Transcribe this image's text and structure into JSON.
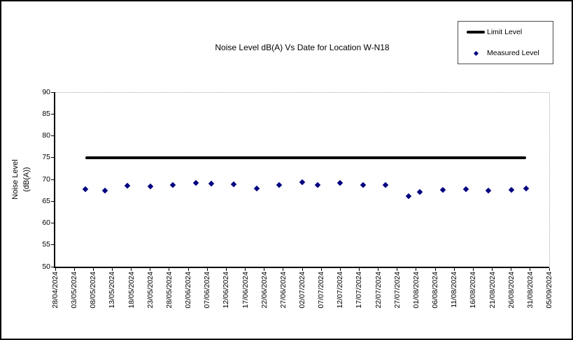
{
  "chart_data": {
    "type": "scatter",
    "title": "Noise Level dB(A) Vs Date for Location W-N18",
    "xlabel": "",
    "ylabel": "Noise Level (dB(A))",
    "ylabel_lines": [
      "Noise Level",
      "(dB(A))"
    ],
    "ylim": [
      50,
      90
    ],
    "y_tick_step": 5,
    "y_tick_labels": [
      "90",
      "85",
      "80",
      "75",
      "70",
      "65",
      "60",
      "55",
      "50"
    ],
    "x_tick_interval_days": 5,
    "x_tick_labels": [
      "28/04/2024",
      "03/05/2024",
      "08/05/2024",
      "13/05/2024",
      "18/05/2024",
      "23/05/2024",
      "28/05/2024",
      "02/06/2024",
      "07/06/2024",
      "12/06/2024",
      "17/06/2024",
      "22/06/2024",
      "27/06/2024",
      "02/07/2024",
      "07/07/2024",
      "12/07/2024",
      "17/07/2024",
      "22/07/2024",
      "27/07/2024",
      "01/08/2024",
      "06/08/2024",
      "11/08/2024",
      "16/08/2024",
      "21/08/2024",
      "26/08/2024",
      "31/08/2024",
      "05/09/2024"
    ],
    "grid": "off",
    "legend_position": "top-right",
    "colors": {
      "limit_line": "#000000",
      "measured_marker": "#000080",
      "plot_border_dotted": "#a6a6a6"
    },
    "series": [
      {
        "name": "Limit Level",
        "type": "line",
        "color": "#000000",
        "points": [
          {
            "date": "06/05/2024",
            "value": 75
          },
          {
            "date": "30/08/2024",
            "value": 75
          }
        ]
      },
      {
        "name": "Measured Level",
        "type": "scatter",
        "marker": "diamond",
        "color": "#000080",
        "points": [
          {
            "date": "06/05/2024",
            "value": 67.8
          },
          {
            "date": "11/05/2024",
            "value": 67.5
          },
          {
            "date": "17/05/2024",
            "value": 68.6
          },
          {
            "date": "23/05/2024",
            "value": 68.4
          },
          {
            "date": "29/05/2024",
            "value": 68.8
          },
          {
            "date": "04/06/2024",
            "value": 69.2
          },
          {
            "date": "08/06/2024",
            "value": 69.0
          },
          {
            "date": "14/06/2024",
            "value": 68.9
          },
          {
            "date": "20/06/2024",
            "value": 67.9
          },
          {
            "date": "26/06/2024",
            "value": 68.8
          },
          {
            "date": "02/07/2024",
            "value": 69.4
          },
          {
            "date": "06/07/2024",
            "value": 68.7
          },
          {
            "date": "12/07/2024",
            "value": 69.2
          },
          {
            "date": "18/07/2024",
            "value": 68.8
          },
          {
            "date": "24/07/2024",
            "value": 68.8
          },
          {
            "date": "30/07/2024",
            "value": 66.2
          },
          {
            "date": "02/08/2024",
            "value": 67.2
          },
          {
            "date": "08/08/2024",
            "value": 67.6
          },
          {
            "date": "14/08/2024",
            "value": 67.8
          },
          {
            "date": "20/08/2024",
            "value": 67.5
          },
          {
            "date": "26/08/2024",
            "value": 67.6
          },
          {
            "date": "30/08/2024",
            "value": 67.9
          }
        ]
      }
    ]
  }
}
